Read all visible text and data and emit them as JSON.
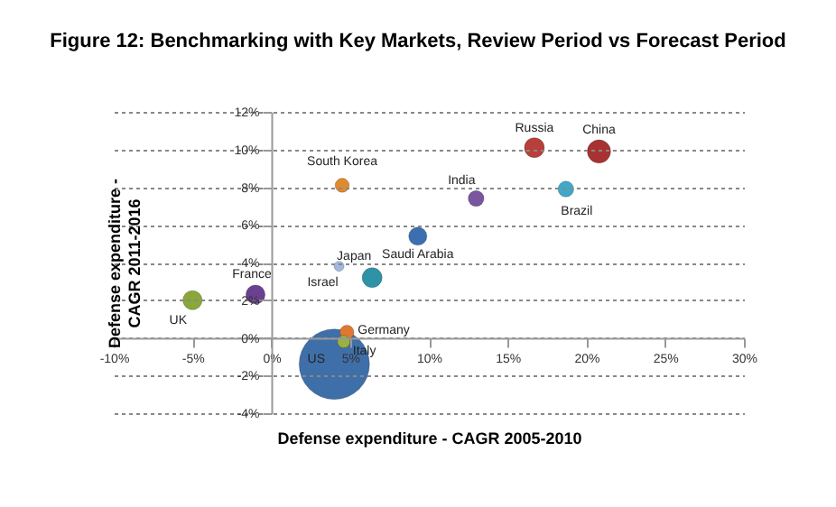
{
  "chart_data": {
    "type": "bubble",
    "title": "Figure 12: Benchmarking with Key Markets, Review Period vs Forecast Period",
    "xlabel": "Defense expenditure - CAGR 2005-2010",
    "ylabel": "Defense expenditure - CAGR 2011-2016",
    "xlim": [
      -10,
      30
    ],
    "xticks": [
      {
        "value": -10,
        "label": "-10%"
      },
      {
        "value": -5,
        "label": "-5%"
      },
      {
        "value": 0,
        "label": "0%"
      },
      {
        "value": 5,
        "label": "5%"
      },
      {
        "value": 10,
        "label": "10%"
      },
      {
        "value": 15,
        "label": "15%"
      },
      {
        "value": 20,
        "label": "20%"
      },
      {
        "value": 25,
        "label": "25%"
      },
      {
        "value": 30,
        "label": "30%"
      }
    ],
    "ylim": [
      -4,
      12
    ],
    "yticks": [
      {
        "value": -4,
        "label": "-4%"
      },
      {
        "value": -2,
        "label": "-2%"
      },
      {
        "value": 0,
        "label": "0%"
      },
      {
        "value": 2,
        "label": "2%"
      },
      {
        "value": 4,
        "label": "4%"
      },
      {
        "value": 6,
        "label": "6%"
      },
      {
        "value": 8,
        "label": "8%"
      },
      {
        "value": 10,
        "label": "10%"
      },
      {
        "value": 12,
        "label": "12%"
      }
    ],
    "grid": "y",
    "legend": false,
    "series": [
      {
        "name": "US",
        "color": "#3f6fa8",
        "x": [
          4.0
        ],
        "values": [
          -1.4
        ],
        "sizes": [
          1
        ]
      },
      {
        "name": "Russia",
        "color": "#b8403a",
        "x": [
          16.7
        ],
        "values": [
          10.1
        ],
        "sizes": [
          0.08
        ]
      },
      {
        "name": "China",
        "color": "#a83232",
        "x": [
          20.8
        ],
        "values": [
          9.9
        ],
        "sizes": [
          0.11
        ]
      },
      {
        "name": "South Korea",
        "color": "#e08a30",
        "x": [
          4.5
        ],
        "values": [
          8.1
        ],
        "sizes": [
          0.04
        ]
      },
      {
        "name": "India",
        "color": "#7a55a0",
        "x": [
          13.0
        ],
        "values": [
          7.4
        ],
        "sizes": [
          0.05
        ]
      },
      {
        "name": "Brazil",
        "color": "#40a8c8",
        "x": [
          18.7
        ],
        "values": [
          7.9
        ],
        "sizes": [
          0.05
        ]
      },
      {
        "name": "Saudi Arabia",
        "color": "#3c6fb0",
        "x": [
          9.3
        ],
        "values": [
          5.4
        ],
        "sizes": [
          0.067
        ]
      },
      {
        "name": "Japan",
        "color": "#2f93a8",
        "x": [
          6.4
        ],
        "values": [
          3.2
        ],
        "sizes": [
          0.08
        ]
      },
      {
        "name": "Israel",
        "color": "#a0b8e0",
        "x": [
          4.3
        ],
        "values": [
          3.8
        ],
        "sizes": [
          0.02
        ]
      },
      {
        "name": "France",
        "color": "#6a4090",
        "x": [
          -1.0
        ],
        "values": [
          2.3
        ],
        "sizes": [
          0.074
        ]
      },
      {
        "name": "UK",
        "color": "#8aa83a",
        "x": [
          -5.0
        ],
        "values": [
          2.0
        ],
        "sizes": [
          0.074
        ]
      },
      {
        "name": "Germany",
        "color": "#e07830",
        "x": [
          4.8
        ],
        "values": [
          0.3
        ],
        "sizes": [
          0.04
        ]
      },
      {
        "name": "Italy",
        "color": "#9ab040",
        "x": [
          4.6
        ],
        "values": [
          -0.2
        ],
        "sizes": [
          0.033
        ]
      }
    ]
  }
}
